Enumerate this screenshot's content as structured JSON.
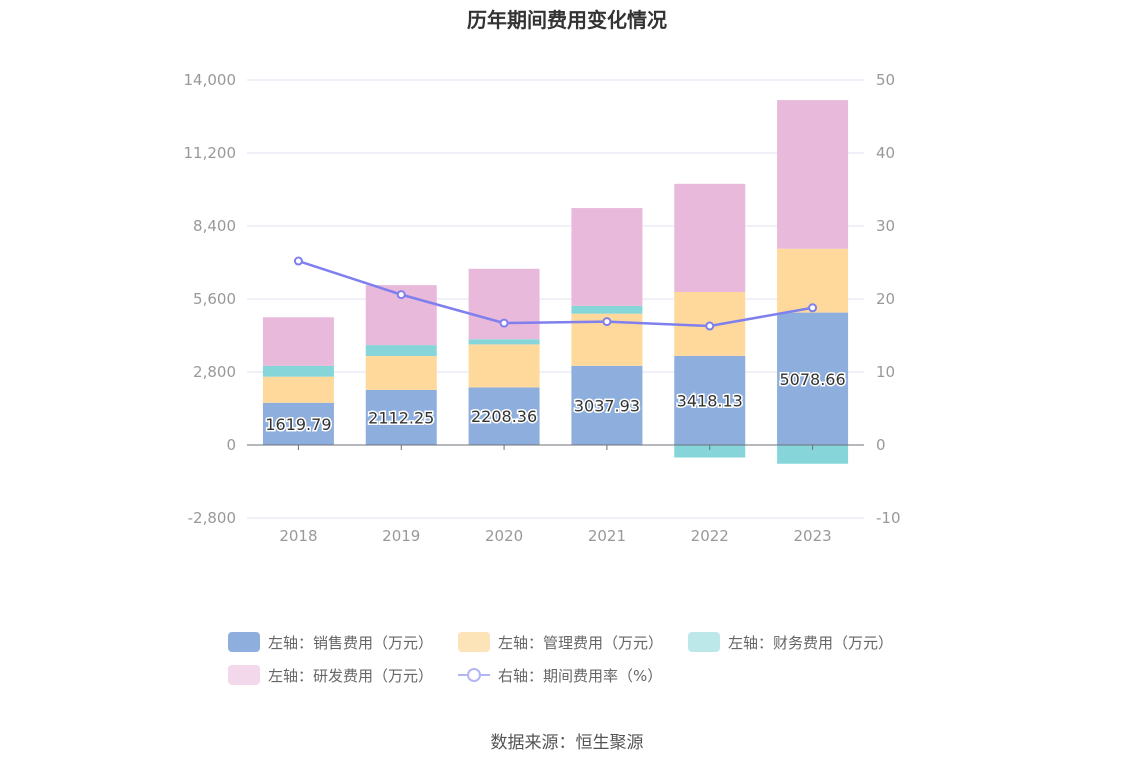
{
  "chart_data": {
    "type": "bar",
    "title": "历年期间费用变化情况",
    "categories": [
      "2018",
      "2019",
      "2020",
      "2021",
      "2022",
      "2023"
    ],
    "y_left": {
      "min": -2800,
      "max": 14000,
      "ticks": [
        "-2,800",
        "0",
        "2,800",
        "5,600",
        "8,400",
        "11,200",
        "14,000"
      ],
      "tick_values": [
        -2800,
        0,
        2800,
        5600,
        8400,
        11200,
        14000
      ]
    },
    "y_right": {
      "min": -10,
      "max": 50,
      "ticks": [
        "-10",
        "0",
        "10",
        "20",
        "30",
        "40",
        "50"
      ],
      "tick_values": [
        -10,
        0,
        10,
        20,
        30,
        40,
        50
      ]
    },
    "series": [
      {
        "name": "左轴：销售费用（万元）",
        "axis": "left",
        "kind": "bar",
        "color": "#8eaedd",
        "values": [
          1619.79,
          2112.25,
          2208.36,
          3037.93,
          3418.13,
          5078.66
        ],
        "labels": [
          "1619.79",
          "2112.25",
          "2208.36",
          "3037.93",
          "3418.13",
          "5078.66"
        ]
      },
      {
        "name": "左轴：管理费用（万元）",
        "axis": "left",
        "kind": "bar",
        "color": "#fed99b",
        "values": [
          1000,
          1300,
          1650,
          2000,
          2450,
          2450
        ]
      },
      {
        "name": "左轴：财务费用（万元）",
        "axis": "left",
        "kind": "bar",
        "color": "#86d6d9",
        "values": [
          420,
          420,
          200,
          300,
          -480,
          -720
        ]
      },
      {
        "name": "左轴：研发费用（万元）",
        "axis": "left",
        "kind": "bar",
        "color": "#e8b9da",
        "values": [
          1860,
          2300,
          2700,
          3750,
          4150,
          5700
        ]
      },
      {
        "name": "右轴：期间费用率（%）",
        "axis": "right",
        "kind": "line",
        "color": "#7f7fee",
        "values": [
          25.2,
          20.6,
          16.7,
          16.9,
          16.3,
          18.8
        ]
      }
    ],
    "legend_position": "bottom",
    "grid": true
  },
  "legend": [
    {
      "label": "左轴：销售费用（万元）",
      "color": "#8eaedd",
      "type": "bar"
    },
    {
      "label": "左轴：管理费用（万元）",
      "color": "#fde3b8",
      "type": "bar"
    },
    {
      "label": "左轴：财务费用（万元）",
      "color": "#bde8ea",
      "type": "bar"
    },
    {
      "label": "左轴：研发费用（万元）",
      "color": "#f3d8ec",
      "type": "bar"
    },
    {
      "label": "右轴：期间费用率（%）",
      "color": "#b3b6f5",
      "type": "line"
    }
  ],
  "source": "数据来源：恒生聚源"
}
